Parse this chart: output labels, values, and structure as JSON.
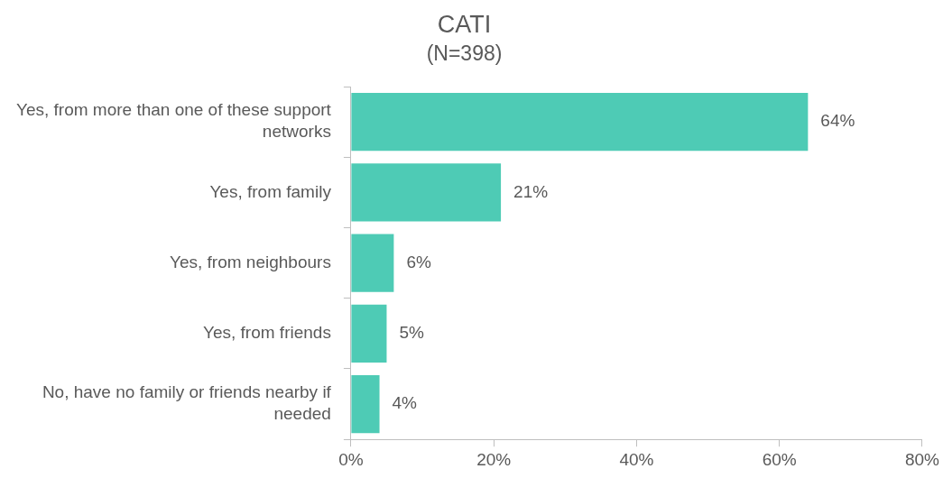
{
  "chart_data": {
    "type": "bar",
    "orientation": "horizontal",
    "title": "CATI",
    "subtitle": "(N=398)",
    "categories": [
      "Yes, from more than one of these support networks",
      "Yes, from family",
      "Yes, from neighbours",
      "Yes, from friends",
      "No, have no family or friends nearby if needed"
    ],
    "values": [
      64,
      21,
      6,
      5,
      4
    ],
    "value_labels": [
      "64%",
      "21%",
      "6%",
      "5%",
      "4%"
    ],
    "color": "#4ecbb5",
    "xlim": [
      0,
      80
    ],
    "xticks": [
      {
        "value": 0,
        "label": "0%"
      },
      {
        "value": 20,
        "label": "20%"
      },
      {
        "value": 40,
        "label": "40%"
      },
      {
        "value": 60,
        "label": "60%"
      },
      {
        "value": 80,
        "label": "80%"
      }
    ],
    "grid": false,
    "legend": false
  }
}
